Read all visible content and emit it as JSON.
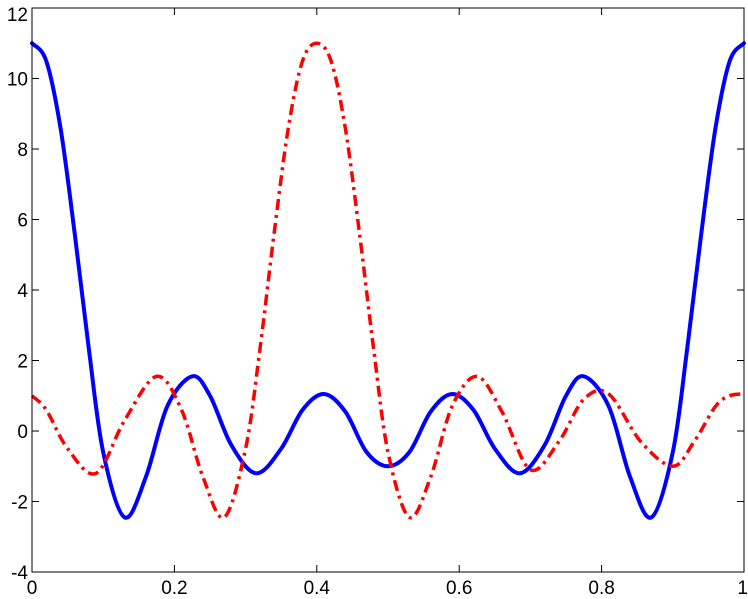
{
  "chart_data": {
    "type": "line",
    "title": "",
    "xlabel": "",
    "ylabel": "",
    "xlim": [
      0,
      1
    ],
    "ylim": [
      -4,
      12
    ],
    "grid": false,
    "legend": "none",
    "x_ticks": [
      "0",
      "0.2",
      "0.4",
      "0.6",
      "0.8",
      "1"
    ],
    "y_ticks": [
      "-4",
      "-2",
      "0",
      "2",
      "4",
      "6",
      "8",
      "10",
      "12"
    ],
    "series": [
      {
        "color": "#0000ff",
        "style": "solid",
        "x": [
          0,
          0.02,
          0.04,
          0.06,
          0.08,
          0.1,
          0.13,
          0.16,
          0.19,
          0.225,
          0.25,
          0.28,
          0.315,
          0.35,
          0.38,
          0.41,
          0.44,
          0.47,
          0.5,
          0.53,
          0.56,
          0.59,
          0.62,
          0.65,
          0.685,
          0.72,
          0.75,
          0.775,
          0.81,
          0.84,
          0.87,
          0.9,
          0.92,
          0.94,
          0.96,
          0.98,
          1.0
        ],
        "y": [
          11,
          10.5,
          8.6,
          5.6,
          2.3,
          -0.6,
          -2.45,
          -1.3,
          0.7,
          1.55,
          1.0,
          -0.4,
          -1.2,
          -0.5,
          0.6,
          1.05,
          0.55,
          -0.6,
          -1.0,
          -0.6,
          0.55,
          1.05,
          0.6,
          -0.5,
          -1.2,
          -0.4,
          1.0,
          1.55,
          0.7,
          -1.3,
          -2.45,
          -0.6,
          2.3,
          5.6,
          8.6,
          10.5,
          11
        ]
      },
      {
        "color": "#ff0000",
        "style": "dash-dot",
        "x": [
          0,
          0.02,
          0.05,
          0.09,
          0.13,
          0.175,
          0.21,
          0.24,
          0.27,
          0.3,
          0.32,
          0.34,
          0.36,
          0.38,
          0.4,
          0.42,
          0.44,
          0.46,
          0.48,
          0.5,
          0.53,
          0.56,
          0.59,
          0.625,
          0.66,
          0.7,
          0.74,
          0.775,
          0.81,
          0.855,
          0.9,
          0.93,
          0.96,
          0.98,
          1.0
        ],
        "y": [
          1.0,
          0.6,
          -0.5,
          -1.2,
          0.3,
          1.55,
          0.6,
          -1.3,
          -2.45,
          -0.5,
          2.3,
          5.6,
          8.6,
          10.5,
          11,
          10.5,
          8.6,
          5.6,
          2.3,
          -0.6,
          -2.45,
          -1.3,
          0.7,
          1.55,
          0.55,
          -1.1,
          -0.3,
          0.9,
          1.05,
          -0.3,
          -1.0,
          -0.3,
          0.7,
          1.0,
          1.05
        ]
      }
    ]
  }
}
